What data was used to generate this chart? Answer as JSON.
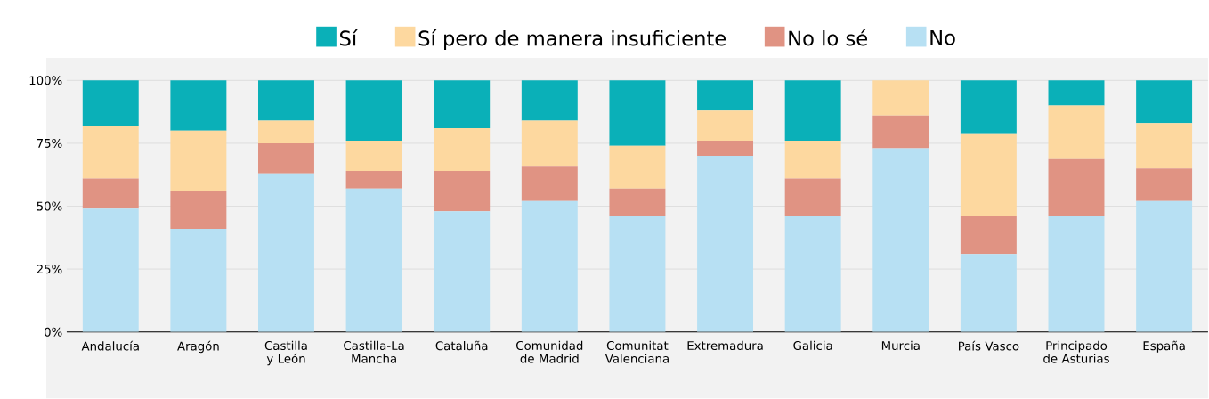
{
  "chart_data": {
    "type": "bar",
    "stacked": true,
    "grid": "y",
    "legend": "top",
    "categories": [
      "Andalucía",
      "Aragón",
      "Castilla y León",
      "Castilla-La Mancha",
      "Cataluña",
      "Comunidad de Madrid",
      "Comunitat Valenciana",
      "Extremadura",
      "Galicia",
      "Murcia",
      "País Vasco",
      "Principado de Asturias",
      "España"
    ],
    "series": [
      {
        "name": "No",
        "color": "#b7e0f3",
        "values": [
          49,
          41,
          63,
          57,
          48,
          52,
          46,
          70,
          46,
          73,
          31,
          46,
          52
        ]
      },
      {
        "name": "No lo sé",
        "color": "#e09383",
        "values": [
          12,
          15,
          12,
          7,
          16,
          14,
          11,
          6,
          15,
          13,
          15,
          23,
          13
        ]
      },
      {
        "name": "Sí pero de manera insuficiente",
        "color": "#fdd89f",
        "values": [
          21,
          24,
          9,
          12,
          17,
          18,
          17,
          12,
          15,
          14,
          33,
          21,
          18
        ]
      },
      {
        "name": "Sí",
        "color": "#0ab0b8",
        "values": [
          18,
          20,
          16,
          24,
          19,
          16,
          26,
          12,
          24,
          0,
          21,
          10,
          17
        ]
      }
    ],
    "ylim": [
      0,
      109
    ],
    "yticks": [
      {
        "value": 0,
        "label": "0%"
      },
      {
        "value": 25,
        "label": "25%"
      },
      {
        "value": 50,
        "label": "50%"
      },
      {
        "value": 75,
        "label": "75%"
      },
      {
        "value": 100,
        "label": "100%"
      }
    ]
  }
}
